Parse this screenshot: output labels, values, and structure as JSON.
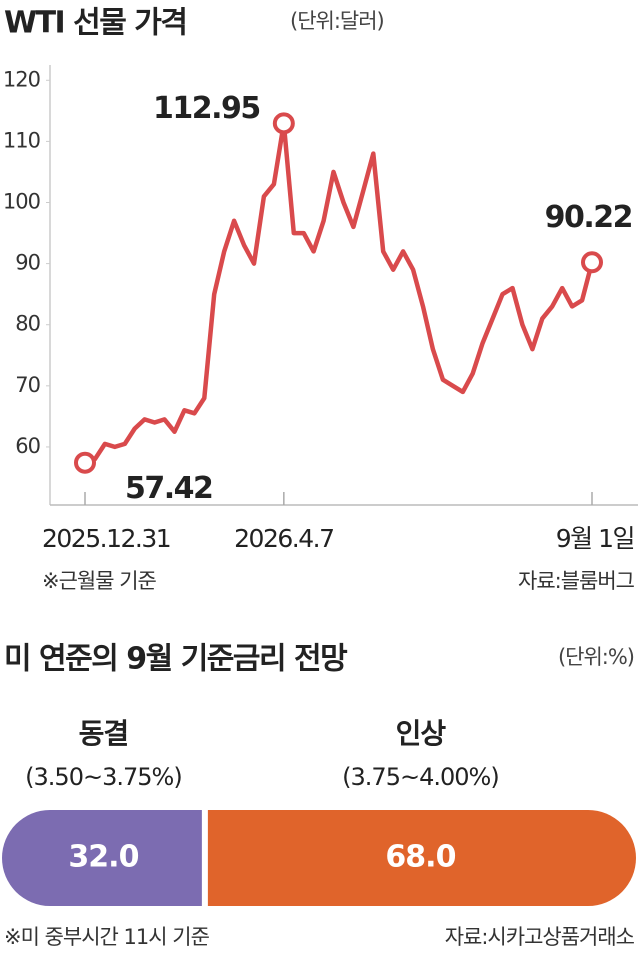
{
  "chart_data": [
    {
      "type": "line",
      "title": "WTI 선물 가격",
      "subtitle": "(단위:달러)",
      "categories": [
        "2025.12.31",
        null,
        null,
        null,
        null,
        null,
        null,
        null,
        null,
        null,
        null,
        null,
        null,
        null,
        null,
        null,
        null,
        null,
        null,
        null,
        "2026.4.7",
        null,
        null,
        null,
        null,
        null,
        null,
        null,
        null,
        null,
        null,
        null,
        null,
        null,
        null,
        null,
        null,
        null,
        null,
        null,
        null,
        null,
        null,
        null,
        null,
        null,
        null,
        null,
        null,
        null,
        null,
        "9월 1일"
      ],
      "series": [
        {
          "name": "WTI",
          "color": "#d94a4c",
          "values": [
            57.42,
            58,
            60.5,
            60,
            60.5,
            63,
            64.5,
            64,
            64.5,
            62.5,
            66,
            65.5,
            68,
            85,
            92,
            97,
            93,
            90,
            101,
            103,
            112.95,
            95,
            95,
            92,
            97,
            105,
            100,
            96,
            102,
            108,
            92,
            89,
            92,
            89,
            83,
            76,
            71,
            70,
            69,
            72,
            77,
            81,
            85,
            86,
            80,
            76,
            81,
            83,
            86,
            83,
            84,
            90.22
          ]
        }
      ],
      "ylim": [
        50.5,
        122.5
      ],
      "yticks": [
        60,
        70,
        80,
        90,
        100,
        110,
        120
      ],
      "notes": [
        "※근월물 기준",
        "자료:블룸버그"
      ]
    },
    {
      "type": "stacked-bar",
      "title": "미 연준의 9월 기준금리 전망",
      "subtitle": "(단위:%)",
      "series": [
        {
          "name": "동결",
          "range": "(3.50~3.75%)",
          "color": "#7c6cb1",
          "values": [
            32
          ],
          "value_labels": [
            "32.0"
          ]
        },
        {
          "name": "인상",
          "range": "(3.75~4.00%)",
          "color": "#e0642b",
          "values": [
            68
          ],
          "value_labels": [
            "68.0"
          ]
        }
      ],
      "notes": [
        "※미 중부시간 11시 기준",
        "자료:시카고상품거래소"
      ]
    }
  ]
}
